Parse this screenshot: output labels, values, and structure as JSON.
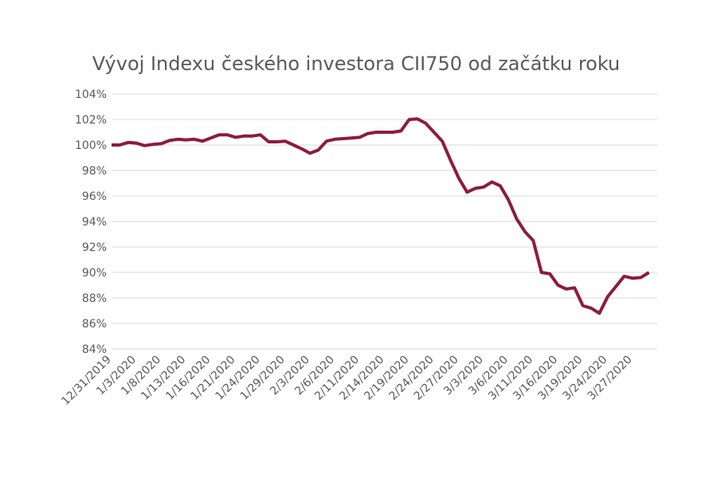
{
  "chart_data": {
    "type": "line",
    "title": "Vývoj Indexu českého investora CII750 od začátku roku",
    "categories": [
      "12/31/2019",
      null,
      null,
      "1/3/2020",
      null,
      null,
      "1/8/2020",
      null,
      null,
      "1/13/2020",
      null,
      null,
      "1/16/2020",
      null,
      null,
      "1/21/2020",
      null,
      null,
      "1/24/2020",
      null,
      null,
      "1/29/2020",
      null,
      null,
      "2/3/2020",
      null,
      null,
      "2/6/2020",
      null,
      null,
      "2/11/2020",
      null,
      null,
      "2/14/2020",
      null,
      null,
      "2/19/2020",
      null,
      null,
      "2/24/2020",
      null,
      null,
      "2/27/2020",
      null,
      null,
      "3/3/2020",
      null,
      null,
      "3/6/2020",
      null,
      null,
      "3/11/2020",
      null,
      null,
      "3/16/2020",
      null,
      null,
      "3/19/2020",
      null,
      null,
      "3/24/2020",
      null,
      null,
      "3/27/2020",
      null,
      null
    ],
    "series": [
      {
        "color": "#8c1c3c",
        "values": [
          100,
          100,
          100.2,
          100.15,
          99.95,
          100.05,
          100.1,
          100.35,
          100.45,
          100.4,
          100.45,
          100.3,
          100.55,
          100.8,
          100.8,
          100.6,
          100.7,
          100.7,
          100.8,
          100.25,
          100.25,
          100.3,
          100,
          99.7,
          99.35,
          99.6,
          100.3,
          100.45,
          100.5,
          100.55,
          100.6,
          100.9,
          101,
          101,
          101,
          101.1,
          102,
          102.05,
          101.7,
          101,
          100.3,
          98.8,
          97.4,
          96.3,
          96.6,
          96.7,
          97.1,
          96.8,
          95.7,
          94.2,
          93.2,
          92.5,
          90,
          89.9,
          89,
          88.7,
          88.8,
          87.4,
          87.2,
          86.8,
          88.1,
          88.9,
          89.7,
          89.55,
          89.6,
          90
        ]
      }
    ],
    "ylim": [
      84,
      104
    ],
    "yticks": [
      {
        "value": 84,
        "label": "84%"
      },
      {
        "value": 86,
        "label": "86%"
      },
      {
        "value": 88,
        "label": "88%"
      },
      {
        "value": 90,
        "label": "90%"
      },
      {
        "value": 92,
        "label": "92%"
      },
      {
        "value": 94,
        "label": "94%"
      },
      {
        "value": 96,
        "label": "96%"
      },
      {
        "value": 98,
        "label": "98%"
      },
      {
        "value": 100,
        "label": "100%"
      },
      {
        "value": 102,
        "label": "102%"
      },
      {
        "value": 104,
        "label": "104%"
      }
    ],
    "grid": true
  }
}
